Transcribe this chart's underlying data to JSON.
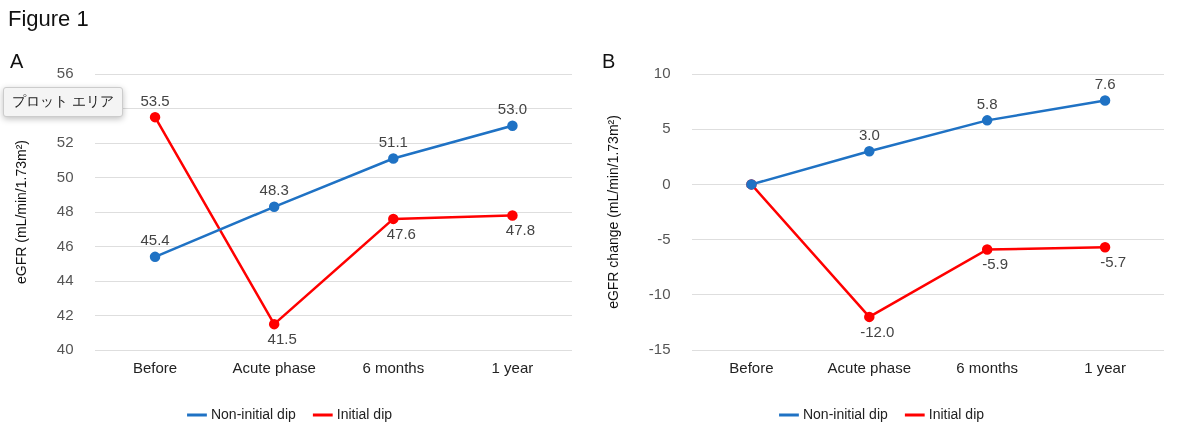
{
  "chart_data": [
    {
      "type": "line",
      "title": "A",
      "ylabel": "eGFR (mL/min/1.73m²)",
      "categories": [
        "Before",
        "Acute phase",
        "6 months",
        "1 year"
      ],
      "series": [
        {
          "name": "Non-initial dip",
          "color": "#1f72c4",
          "values": [
            45.4,
            48.3,
            51.1,
            53.0
          ],
          "value_labels": [
            "45.4",
            "48.3",
            "51.1",
            "53.0"
          ]
        },
        {
          "name": "Initial dip",
          "color": "#ff0000",
          "values": [
            53.5,
            41.5,
            47.6,
            47.8
          ],
          "value_labels": [
            "53.5",
            "41.5",
            "47.6",
            "47.8"
          ]
        }
      ],
      "ylim": [
        40,
        56
      ],
      "yticks": [
        40,
        42,
        44,
        46,
        48,
        50,
        52,
        {
          "value": 54,
          "label": null
        },
        56
      ],
      "grid": "y",
      "legend": "bottom",
      "marker": "circle",
      "line_style": "solid",
      "annotations": [
        "Figure 1",
        "プロット エリア"
      ]
    },
    {
      "type": "line",
      "title": "B",
      "ylabel": "eGFR change (mL/min/1.73m²)",
      "categories": [
        "Before",
        "Acute phase",
        "6 months",
        "1 year"
      ],
      "series": [
        {
          "name": "Non-initial dip",
          "color": "#1f72c4",
          "values": [
            0,
            3.0,
            5.8,
            7.6
          ],
          "value_labels": [
            null,
            "3.0",
            "5.8",
            "7.6"
          ]
        },
        {
          "name": "Initial dip",
          "color": "#ff0000",
          "values": [
            0,
            -12.0,
            -5.9,
            -5.7
          ],
          "value_labels": [
            null,
            "-12.0",
            "-5.9",
            "-5.7"
          ]
        }
      ],
      "ylim": [
        -15,
        10
      ],
      "yticks": [
        -15,
        -10,
        -5,
        0,
        5,
        10
      ],
      "grid": "y",
      "legend": "bottom",
      "marker": "circle",
      "line_style": "solid"
    }
  ]
}
